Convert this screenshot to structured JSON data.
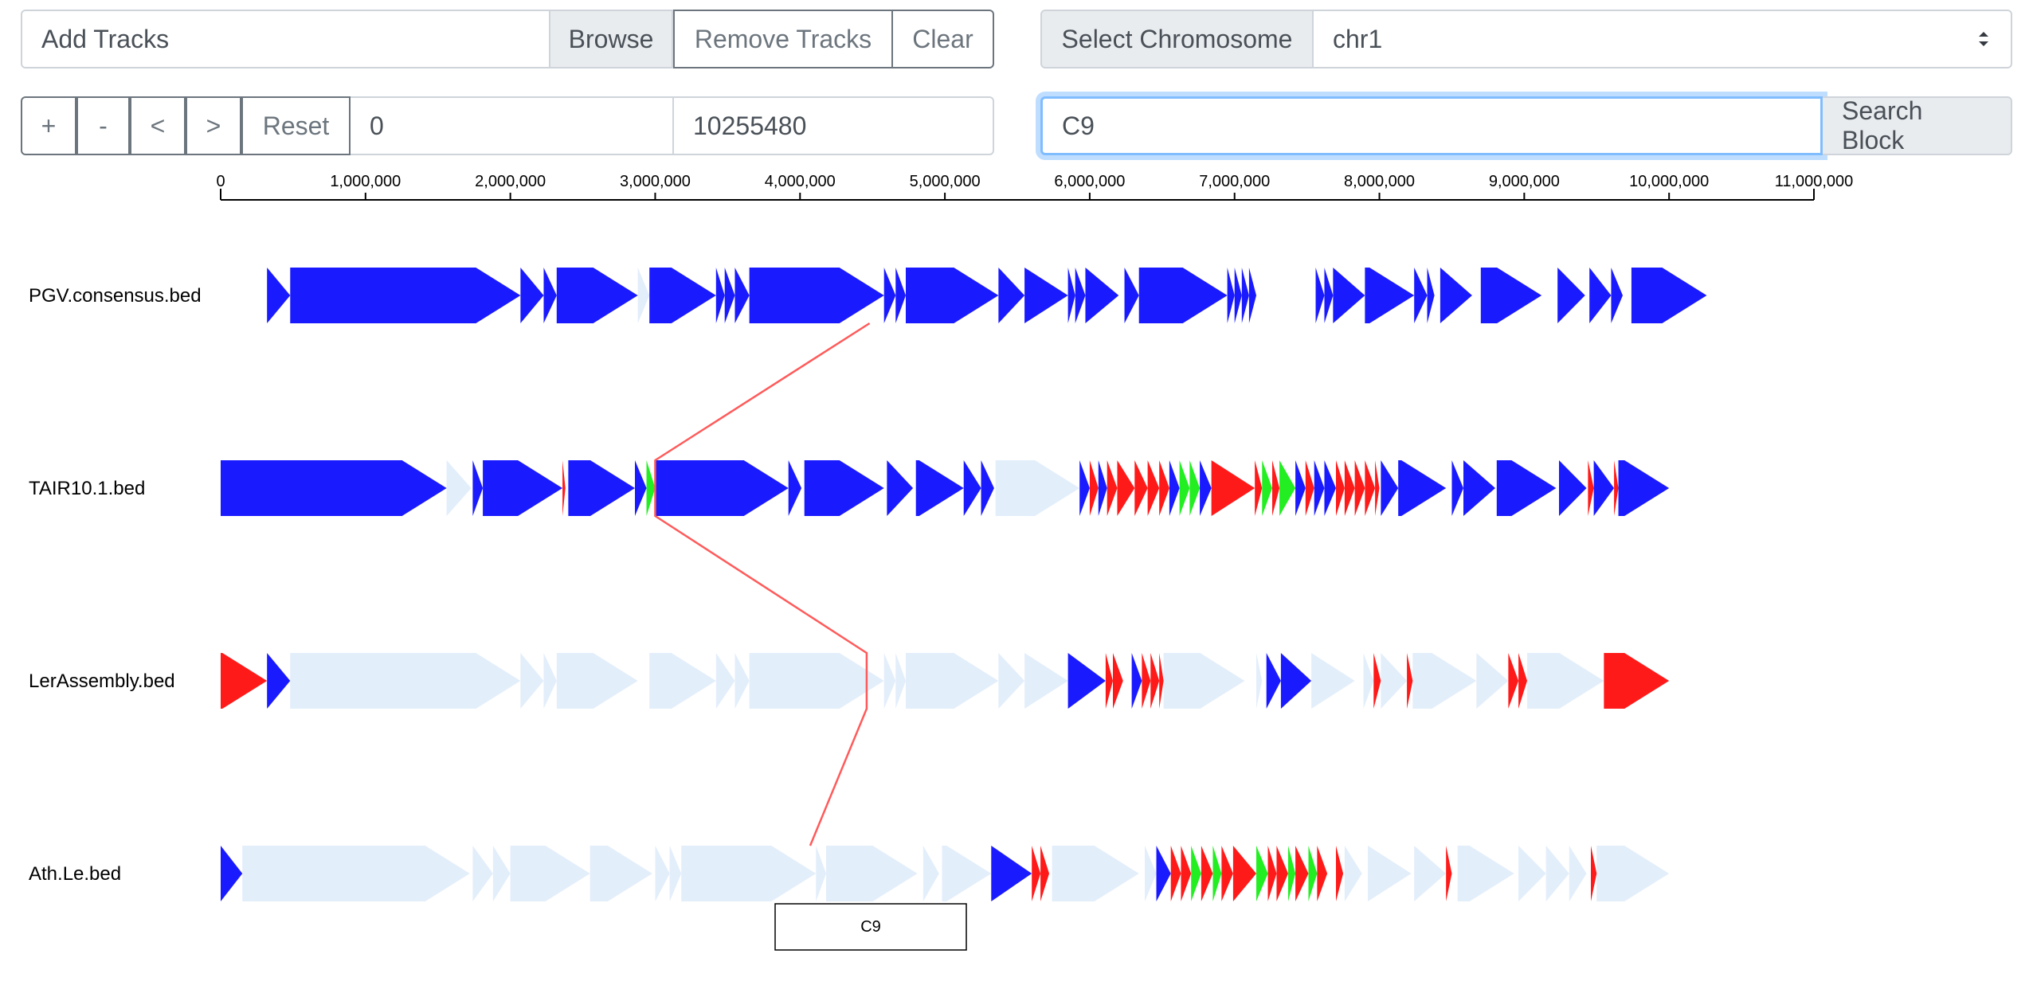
{
  "controls": {
    "add_tracks_label": "Add Tracks",
    "browse_label": "Browse",
    "remove_tracks_label": "Remove Tracks",
    "clear_label": "Clear",
    "select_chromosome_label": "Select Chromosome",
    "chromosome_value": "chr1",
    "zoom_in_label": "+",
    "zoom_out_label": "-",
    "pan_left_label": "<",
    "pan_right_label": ">",
    "reset_label": "Reset",
    "range_start": "0",
    "range_end": "10255480",
    "search_value": "C9",
    "search_block_label": "Search Block"
  },
  "axis": {
    "max": 11000000,
    "ticks": [
      0,
      1000000,
      2000000,
      3000000,
      4000000,
      5000000,
      6000000,
      7000000,
      8000000,
      9000000,
      10000000,
      11000000
    ],
    "tick_labels": [
      "0",
      "1,000,000",
      "2,000,000",
      "3,000,000",
      "4,000,000",
      "5,000,000",
      "6,000,000",
      "7,000,000",
      "8,000,000",
      "9,000,000",
      "10,000,000",
      "11,000,000"
    ]
  },
  "colors": {
    "blue": "#1a1aff",
    "red": "#ff1a1a",
    "green": "#22ee22",
    "faded": "#e3eefb",
    "link": "#ff5a5a"
  },
  "tracks": [
    {
      "name": "PGV.consensus.bed",
      "blocks": [
        [
          320000,
          480000,
          "blue"
        ],
        [
          480000,
          2070000,
          "blue"
        ],
        [
          2070000,
          2230000,
          "blue"
        ],
        [
          2230000,
          2320000,
          "blue"
        ],
        [
          2320000,
          2880000,
          "blue"
        ],
        [
          2880000,
          2960000,
          "faded"
        ],
        [
          2960000,
          3420000,
          "blue"
        ],
        [
          3420000,
          3480000,
          "blue"
        ],
        [
          3480000,
          3550000,
          "blue"
        ],
        [
          3550000,
          3650000,
          "blue"
        ],
        [
          3650000,
          4580000,
          "blue"
        ],
        [
          4580000,
          4660000,
          "blue"
        ],
        [
          4660000,
          4730000,
          "blue"
        ],
        [
          4730000,
          5370000,
          "blue"
        ],
        [
          5370000,
          5550000,
          "blue"
        ],
        [
          5550000,
          5850000,
          "blue"
        ],
        [
          5850000,
          5900000,
          "blue"
        ],
        [
          5900000,
          5970000,
          "blue"
        ],
        [
          5970000,
          6200000,
          "blue"
        ],
        [
          6240000,
          6340000,
          "blue"
        ],
        [
          6340000,
          6950000,
          "blue"
        ],
        [
          6950000,
          7000000,
          "blue"
        ],
        [
          7000000,
          7050000,
          "blue"
        ],
        [
          7050000,
          7100000,
          "blue"
        ],
        [
          7100000,
          7150000,
          "blue"
        ],
        [
          7560000,
          7620000,
          "blue"
        ],
        [
          7620000,
          7680000,
          "blue"
        ],
        [
          7680000,
          7900000,
          "blue"
        ],
        [
          7900000,
          8240000,
          "blue"
        ],
        [
          8240000,
          8330000,
          "blue"
        ],
        [
          8330000,
          8380000,
          "blue"
        ],
        [
          8420000,
          8640000,
          "blue"
        ],
        [
          8700000,
          9120000,
          "blue"
        ],
        [
          9230000,
          9420000,
          "blue"
        ],
        [
          9450000,
          9600000,
          "blue"
        ],
        [
          9600000,
          9680000,
          "blue"
        ],
        [
          9740000,
          10260000,
          "blue"
        ]
      ]
    },
    {
      "name": "TAIR10.1.bed",
      "blocks": [
        [
          0,
          1560000,
          "blue"
        ],
        [
          1560000,
          1730000,
          "faded"
        ],
        [
          1740000,
          1810000,
          "blue"
        ],
        [
          1810000,
          2360000,
          "blue"
        ],
        [
          2360000,
          2380000,
          "red"
        ],
        [
          2400000,
          2860000,
          "blue"
        ],
        [
          2860000,
          2940000,
          "blue"
        ],
        [
          2940000,
          3000000,
          "green"
        ],
        [
          3000000,
          3920000,
          "blue"
        ],
        [
          3920000,
          4010000,
          "blue"
        ],
        [
          4030000,
          4580000,
          "blue"
        ],
        [
          4600000,
          4780000,
          "blue"
        ],
        [
          4800000,
          5130000,
          "blue"
        ],
        [
          5130000,
          5250000,
          "blue"
        ],
        [
          5250000,
          5340000,
          "blue"
        ],
        [
          5350000,
          5930000,
          "faded"
        ],
        [
          5930000,
          6000000,
          "blue"
        ],
        [
          6000000,
          6060000,
          "red"
        ],
        [
          6060000,
          6120000,
          "blue"
        ],
        [
          6120000,
          6190000,
          "red"
        ],
        [
          6190000,
          6310000,
          "red"
        ],
        [
          6310000,
          6400000,
          "red"
        ],
        [
          6400000,
          6480000,
          "red"
        ],
        [
          6480000,
          6550000,
          "red"
        ],
        [
          6550000,
          6620000,
          "blue"
        ],
        [
          6620000,
          6690000,
          "green"
        ],
        [
          6690000,
          6760000,
          "green"
        ],
        [
          6760000,
          6840000,
          "blue"
        ],
        [
          6840000,
          7140000,
          "red"
        ],
        [
          7140000,
          7190000,
          "red"
        ],
        [
          7190000,
          7260000,
          "green"
        ],
        [
          7260000,
          7310000,
          "red"
        ],
        [
          7310000,
          7420000,
          "green"
        ],
        [
          7420000,
          7490000,
          "blue"
        ],
        [
          7490000,
          7550000,
          "red"
        ],
        [
          7550000,
          7620000,
          "blue"
        ],
        [
          7620000,
          7700000,
          "blue"
        ],
        [
          7700000,
          7760000,
          "red"
        ],
        [
          7760000,
          7830000,
          "red"
        ],
        [
          7830000,
          7900000,
          "red"
        ],
        [
          7900000,
          7970000,
          "red"
        ],
        [
          7970000,
          8000000,
          "red"
        ],
        [
          8010000,
          8130000,
          "blue"
        ],
        [
          8130000,
          8460000,
          "blue"
        ],
        [
          8500000,
          8580000,
          "blue"
        ],
        [
          8580000,
          8800000,
          "blue"
        ],
        [
          8810000,
          9220000,
          "blue"
        ],
        [
          9240000,
          9430000,
          "blue"
        ],
        [
          9440000,
          9480000,
          "red"
        ],
        [
          9480000,
          9620000,
          "blue"
        ],
        [
          9620000,
          9650000,
          "red"
        ],
        [
          9650000,
          10000000,
          "blue"
        ]
      ]
    },
    {
      "name": "LerAssembly.bed",
      "blocks": [
        [
          0,
          320000,
          "red"
        ],
        [
          320000,
          480000,
          "blue"
        ],
        [
          480000,
          2070000,
          "faded"
        ],
        [
          2070000,
          2230000,
          "faded"
        ],
        [
          2230000,
          2320000,
          "faded"
        ],
        [
          2320000,
          2880000,
          "faded"
        ],
        [
          2960000,
          3420000,
          "faded"
        ],
        [
          3420000,
          3550000,
          "faded"
        ],
        [
          3550000,
          3650000,
          "faded"
        ],
        [
          3650000,
          4580000,
          "faded"
        ],
        [
          4580000,
          4660000,
          "faded"
        ],
        [
          4660000,
          4730000,
          "faded"
        ],
        [
          4730000,
          5370000,
          "faded"
        ],
        [
          5370000,
          5550000,
          "faded"
        ],
        [
          5550000,
          5850000,
          "faded"
        ],
        [
          5850000,
          6110000,
          "blue"
        ],
        [
          6110000,
          6160000,
          "red"
        ],
        [
          6160000,
          6230000,
          "red"
        ],
        [
          6290000,
          6360000,
          "blue"
        ],
        [
          6360000,
          6420000,
          "red"
        ],
        [
          6420000,
          6480000,
          "red"
        ],
        [
          6480000,
          6510000,
          "red"
        ],
        [
          6510000,
          7070000,
          "faded"
        ],
        [
          7150000,
          7190000,
          "faded"
        ],
        [
          7220000,
          7320000,
          "blue"
        ],
        [
          7320000,
          7530000,
          "blue"
        ],
        [
          7530000,
          7830000,
          "faded"
        ],
        [
          7890000,
          7960000,
          "faded"
        ],
        [
          7960000,
          8010000,
          "red"
        ],
        [
          8010000,
          8190000,
          "faded"
        ],
        [
          8190000,
          8230000,
          "red"
        ],
        [
          8230000,
          8670000,
          "faded"
        ],
        [
          8670000,
          8890000,
          "faded"
        ],
        [
          8890000,
          8960000,
          "red"
        ],
        [
          8960000,
          9020000,
          "red"
        ],
        [
          9020000,
          9550000,
          "faded"
        ],
        [
          9550000,
          10000000,
          "red"
        ]
      ]
    },
    {
      "name": "Ath.Le.bed",
      "blocks": [
        [
          0,
          150000,
          "blue"
        ],
        [
          150000,
          1720000,
          "faded"
        ],
        [
          1740000,
          1880000,
          "faded"
        ],
        [
          1880000,
          2000000,
          "faded"
        ],
        [
          2000000,
          2550000,
          "faded"
        ],
        [
          2550000,
          2980000,
          "faded"
        ],
        [
          3000000,
          3100000,
          "faded"
        ],
        [
          3100000,
          3180000,
          "faded"
        ],
        [
          3180000,
          4110000,
          "faded"
        ],
        [
          4110000,
          4180000,
          "faded"
        ],
        [
          4180000,
          4810000,
          "faded"
        ],
        [
          4850000,
          4960000,
          "faded"
        ],
        [
          4980000,
          5320000,
          "faded"
        ],
        [
          5320000,
          5600000,
          "blue"
        ],
        [
          5600000,
          5660000,
          "red"
        ],
        [
          5660000,
          5720000,
          "red"
        ],
        [
          5740000,
          6340000,
          "faded"
        ],
        [
          6380000,
          6460000,
          "faded"
        ],
        [
          6460000,
          6560000,
          "blue"
        ],
        [
          6560000,
          6630000,
          "red"
        ],
        [
          6630000,
          6700000,
          "red"
        ],
        [
          6700000,
          6770000,
          "green"
        ],
        [
          6770000,
          6850000,
          "red"
        ],
        [
          6850000,
          6910000,
          "green"
        ],
        [
          6910000,
          6990000,
          "red"
        ],
        [
          6990000,
          7150000,
          "red"
        ],
        [
          7150000,
          7230000,
          "green"
        ],
        [
          7230000,
          7290000,
          "red"
        ],
        [
          7290000,
          7370000,
          "red"
        ],
        [
          7370000,
          7420000,
          "green"
        ],
        [
          7420000,
          7510000,
          "red"
        ],
        [
          7510000,
          7570000,
          "green"
        ],
        [
          7570000,
          7640000,
          "red"
        ],
        [
          7700000,
          7750000,
          "red"
        ],
        [
          7760000,
          7880000,
          "faded"
        ],
        [
          7920000,
          8220000,
          "faded"
        ],
        [
          8240000,
          8460000,
          "faded"
        ],
        [
          8460000,
          8500000,
          "red"
        ],
        [
          8540000,
          8930000,
          "faded"
        ],
        [
          8960000,
          9150000,
          "faded"
        ],
        [
          9150000,
          9310000,
          "faded"
        ],
        [
          9310000,
          9430000,
          "faded"
        ],
        [
          9460000,
          9500000,
          "red"
        ],
        [
          9500000,
          10000000,
          "faded"
        ]
      ]
    }
  ],
  "link": {
    "label": "C9",
    "points": [
      {
        "track": 0,
        "pos": 4480000,
        "side": "bottom"
      },
      {
        "track": 1,
        "pos": 3000000,
        "side": "top"
      },
      {
        "track": 1,
        "pos": 3000000,
        "side": "bottom"
      },
      {
        "track": 2,
        "pos": 4460000,
        "side": "top"
      },
      {
        "track": 2,
        "pos": 4460000,
        "side": "bottom"
      },
      {
        "track": 3,
        "pos": 4070000,
        "side": "top"
      }
    ]
  }
}
